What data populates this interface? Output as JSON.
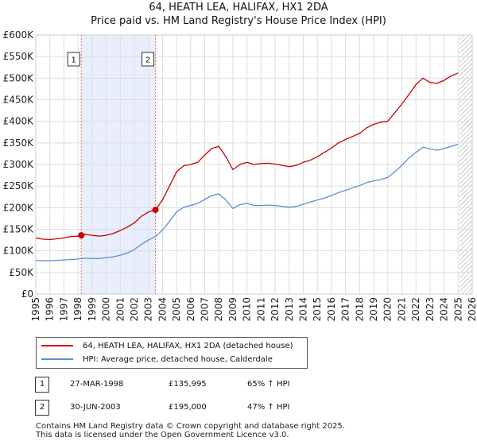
{
  "chart_data": {
    "type": "line",
    "title": "64, HEATH LEA, HALIFAX, HX1 2DA",
    "subtitle": "Price paid vs. HM Land Registry's House Price Index (HPI)",
    "xlabel": "",
    "ylabel": "",
    "xlim": [
      1995,
      2026
    ],
    "ylim": [
      0,
      600000
    ],
    "x_ticks": [
      1995,
      1996,
      1997,
      1998,
      1999,
      2000,
      2001,
      2002,
      2003,
      2004,
      2005,
      2006,
      2007,
      2008,
      2009,
      2010,
      2011,
      2012,
      2013,
      2014,
      2015,
      2016,
      2017,
      2018,
      2019,
      2020,
      2021,
      2022,
      2023,
      2024,
      2025,
      2026
    ],
    "y_ticks": [
      {
        "value": 0,
        "label": "£0"
      },
      {
        "value": 50000,
        "label": "£50K"
      },
      {
        "value": 100000,
        "label": "£100K"
      },
      {
        "value": 150000,
        "label": "£150K"
      },
      {
        "value": 200000,
        "label": "£200K"
      },
      {
        "value": 250000,
        "label": "£250K"
      },
      {
        "value": 300000,
        "label": "£300K"
      },
      {
        "value": 350000,
        "label": "£350K"
      },
      {
        "value": 400000,
        "label": "£400K"
      },
      {
        "value": 450000,
        "label": "£450K"
      },
      {
        "value": 500000,
        "label": "£500K"
      },
      {
        "value": 550000,
        "label": "£550K"
      },
      {
        "value": 600000,
        "label": "£600K"
      }
    ],
    "grid": true,
    "shaded_region": {
      "from": 1998.23,
      "to": 2003.5
    },
    "hatched_future_from": 2025.1,
    "series": [
      {
        "name": "64, HEATH LEA, HALIFAX, HX1 2DA (detached house)",
        "color": "#cc0000",
        "x": [
          1995.0,
          1995.5,
          1996.0,
          1996.5,
          1997.0,
          1997.5,
          1998.0,
          1998.23,
          1998.5,
          1999.0,
          1999.5,
          2000.0,
          2000.5,
          2001.0,
          2001.5,
          2002.0,
          2002.5,
          2003.0,
          2003.5,
          2004.0,
          2004.5,
          2005.0,
          2005.5,
          2006.0,
          2006.5,
          2007.0,
          2007.5,
          2008.0,
          2008.5,
          2009.0,
          2009.5,
          2010.0,
          2010.5,
          2011.0,
          2011.5,
          2012.0,
          2012.5,
          2013.0,
          2013.5,
          2014.0,
          2014.5,
          2015.0,
          2015.5,
          2016.0,
          2016.5,
          2017.0,
          2017.5,
          2018.0,
          2018.5,
          2019.0,
          2019.5,
          2020.0,
          2020.5,
          2021.0,
          2021.5,
          2022.0,
          2022.5,
          2023.0,
          2023.5,
          2024.0,
          2024.5,
          2025.0
        ],
        "values": [
          130000,
          127000,
          126000,
          128000,
          130000,
          133000,
          134000,
          135995,
          138000,
          136000,
          134000,
          136000,
          140000,
          147000,
          155000,
          165000,
          180000,
          190000,
          195000,
          218000,
          250000,
          283000,
          297000,
          300000,
          305000,
          322000,
          337000,
          342000,
          318000,
          288000,
          300000,
          305000,
          300000,
          302000,
          303000,
          301000,
          298000,
          295000,
          298000,
          305000,
          310000,
          318000,
          328000,
          338000,
          350000,
          358000,
          365000,
          372000,
          385000,
          393000,
          398000,
          400000,
          420000,
          440000,
          462000,
          485000,
          500000,
          490000,
          488000,
          495000,
          505000,
          512000
        ]
      },
      {
        "name": "HPI: Average price, detached house, Calderdale",
        "color": "#5b8fd4",
        "x": [
          1995.0,
          1995.5,
          1996.0,
          1996.5,
          1997.0,
          1997.5,
          1998.0,
          1998.5,
          1999.0,
          1999.5,
          2000.0,
          2000.5,
          2001.0,
          2001.5,
          2002.0,
          2002.5,
          2003.0,
          2003.5,
          2004.0,
          2004.5,
          2005.0,
          2005.5,
          2006.0,
          2006.5,
          2007.0,
          2007.5,
          2008.0,
          2008.5,
          2009.0,
          2009.5,
          2010.0,
          2010.5,
          2011.0,
          2011.5,
          2012.0,
          2012.5,
          2013.0,
          2013.5,
          2014.0,
          2014.5,
          2015.0,
          2015.5,
          2016.0,
          2016.5,
          2017.0,
          2017.5,
          2018.0,
          2018.5,
          2019.0,
          2019.5,
          2020.0,
          2020.5,
          2021.0,
          2021.5,
          2022.0,
          2022.5,
          2023.0,
          2023.5,
          2024.0,
          2024.5,
          2025.0
        ],
        "values": [
          78000,
          77000,
          77000,
          78000,
          79000,
          80000,
          81000,
          83000,
          82000,
          82000,
          84000,
          86000,
          90000,
          95000,
          103000,
          115000,
          125000,
          133000,
          148000,
          168000,
          190000,
          201000,
          205000,
          210000,
          219000,
          228000,
          232000,
          218000,
          198000,
          207000,
          210000,
          205000,
          205000,
          206000,
          205000,
          203000,
          201000,
          203000,
          208000,
          213000,
          218000,
          222000,
          228000,
          235000,
          240000,
          246000,
          251000,
          258000,
          262000,
          265000,
          270000,
          283000,
          298000,
          315000,
          328000,
          340000,
          336000,
          333000,
          337000,
          342000,
          347000
        ]
      }
    ],
    "sales": [
      {
        "label": "1",
        "x": 1998.23,
        "value": 135995
      },
      {
        "label": "2",
        "x": 2003.5,
        "value": 195000
      }
    ]
  },
  "legend": {
    "items": [
      {
        "label": "64, HEATH LEA, HALIFAX, HX1 2DA (detached house)",
        "color": "#cc0000"
      },
      {
        "label": "HPI: Average price, detached house, Calderdale",
        "color": "#5b8fd4"
      }
    ]
  },
  "annotations": [
    {
      "num": "1",
      "date": "27-MAR-1998",
      "price": "£135,995",
      "hpi": "65% ↑ HPI"
    },
    {
      "num": "2",
      "date": "30-JUN-2003",
      "price": "£195,000",
      "hpi": "47% ↑ HPI"
    }
  ],
  "footer": {
    "line1": "Contains HM Land Registry data © Crown copyright and database right 2025.",
    "line2": "This data is licensed under the Open Government Licence v3.0."
  }
}
